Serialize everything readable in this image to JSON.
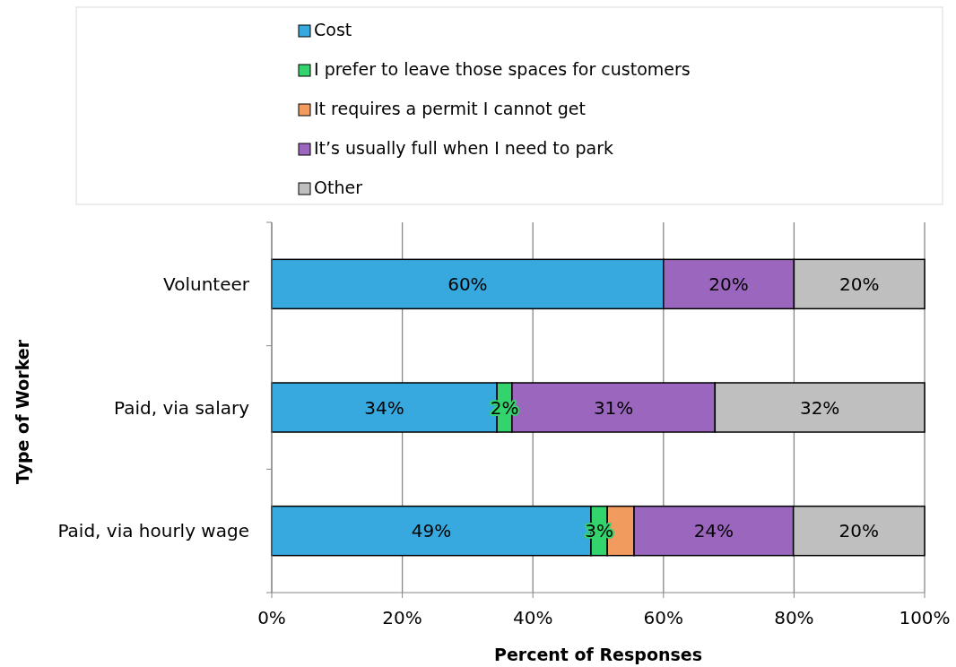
{
  "chart_data": {
    "type": "bar",
    "orientation": "horizontal",
    "stacked": true,
    "xlabel": "Percent of Responses",
    "ylabel": "Type of Worker",
    "categories": [
      "Volunteer",
      "Paid, via salary",
      "Paid, via hourly wage"
    ],
    "series": [
      {
        "name": "Cost",
        "color": "#37a9df",
        "values": [
          60,
          34.5,
          48.9
        ],
        "value_labels": [
          "60%",
          "34%",
          "49%"
        ]
      },
      {
        "name": "I prefer to leave those spaces for customers",
        "color": "#33d36e",
        "values": [
          0,
          2.3,
          2.5
        ],
        "value_labels": [
          null,
          "2%",
          "3%"
        ]
      },
      {
        "name": "It requires a permit I cannot get",
        "color": "#f29b5e",
        "values": [
          0,
          0,
          4.1
        ],
        "value_labels": [
          null,
          null,
          null
        ]
      },
      {
        "name": "It’s usually full when I need to park",
        "color": "#9b66bd",
        "values": [
          20,
          31.1,
          24.4
        ],
        "value_labels": [
          "20%",
          "31%",
          "24%"
        ]
      },
      {
        "name": "Other",
        "color": "#bfbfbf",
        "values": [
          20,
          32.1,
          20.1
        ],
        "value_labels": [
          "20%",
          "32%",
          "20%"
        ]
      }
    ],
    "xlim": [
      0,
      100
    ],
    "xticks": [
      {
        "value": 0,
        "label": "0%"
      },
      {
        "value": 20,
        "label": "20%"
      },
      {
        "value": 40,
        "label": "40%"
      },
      {
        "value": 60,
        "label": "60%"
      },
      {
        "value": 80,
        "label": "80%"
      },
      {
        "value": 100,
        "label": "100%"
      }
    ],
    "grid": "x",
    "legend": "top"
  }
}
